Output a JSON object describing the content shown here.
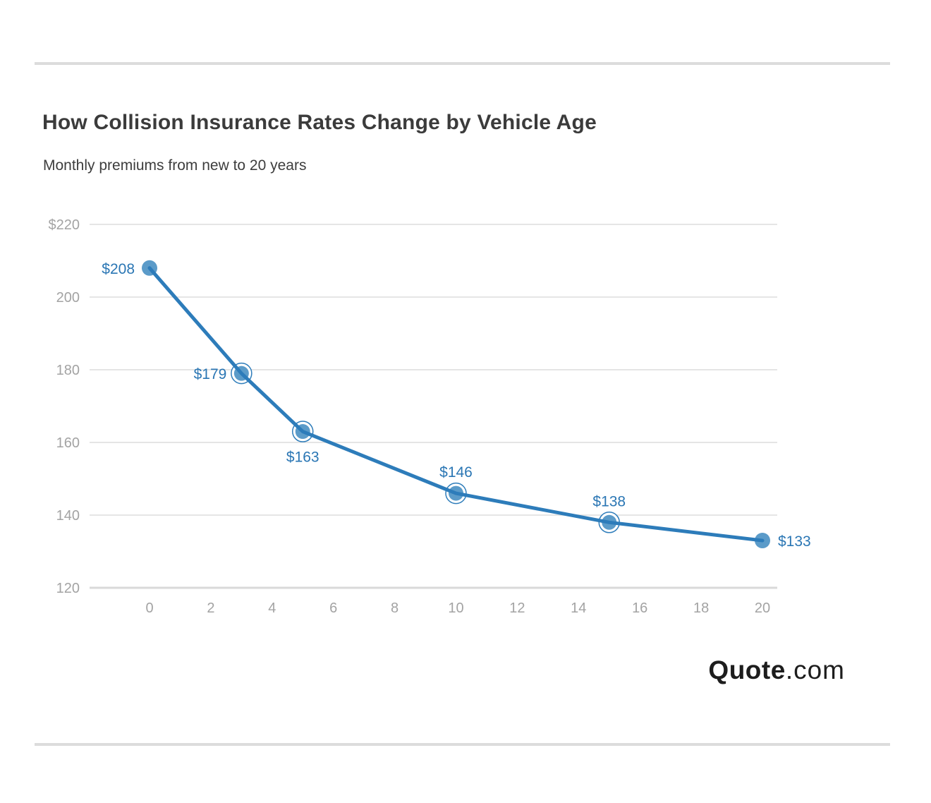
{
  "page": {
    "title": "How Collision Insurance Rates Change by Vehicle Age",
    "subtitle": "Monthly premiums from new to 20 years",
    "brand": {
      "bold": "Quote",
      "rest": ".com"
    }
  },
  "chart_data": {
    "type": "line",
    "title": "How Collision Insurance Rates Change by Vehicle Age",
    "subtitle": "Monthly premiums from new to 20 years",
    "xlabel": "",
    "ylabel": "",
    "x": [
      0,
      3,
      5,
      10,
      15,
      20
    ],
    "values": [
      208,
      179,
      163,
      146,
      138,
      133
    ],
    "point_labels": [
      "$208",
      "$179",
      "$163",
      "$146",
      "$138",
      "$133"
    ],
    "xlim": [
      0,
      20
    ],
    "ylim": [
      120,
      220
    ],
    "x_ticks": [
      0,
      2,
      4,
      6,
      8,
      10,
      12,
      14,
      16,
      18,
      20
    ],
    "y_ticks": [
      120,
      140,
      160,
      180,
      200,
      220
    ],
    "y_tick_labels": [
      "120",
      "140",
      "160",
      "180",
      "200",
      "$220"
    ],
    "grid": "horizontal",
    "legend": "none",
    "label_placement": [
      "left",
      "left",
      "below",
      "above",
      "above",
      "right"
    ],
    "ring_markers": [
      false,
      true,
      true,
      true,
      true,
      false
    ],
    "colors": {
      "line": "#2d7cba",
      "marker_fill": "#5b9bc9",
      "point_label": "#2a76b4",
      "axis_text": "#a3a3a3",
      "grid": "#e5e5e5",
      "grid_bottom": "#d9d9d9"
    }
  }
}
